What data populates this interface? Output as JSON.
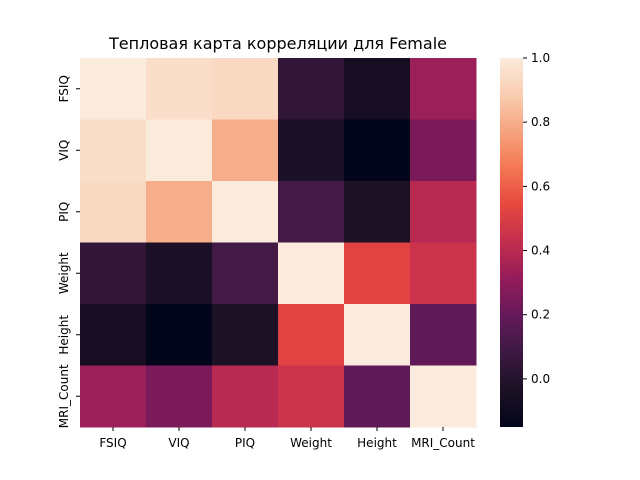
{
  "chart_data": {
    "type": "heatmap",
    "title": "Тепловая карта корреляции для Female",
    "xlabel": "",
    "ylabel": "",
    "x_categories": [
      "FSIQ",
      "VIQ",
      "PIQ",
      "Weight",
      "Height",
      "MRI_Count"
    ],
    "y_categories": [
      "FSIQ",
      "VIQ",
      "PIQ",
      "Weight",
      "Height",
      "MRI_Count"
    ],
    "values": [
      [
        1.0,
        0.95,
        0.93,
        0.04,
        -0.06,
        0.33
      ],
      [
        0.95,
        1.0,
        0.8,
        -0.04,
        -0.15,
        0.25
      ],
      [
        0.93,
        0.8,
        1.0,
        0.1,
        -0.03,
        0.4
      ],
      [
        0.04,
        -0.04,
        0.1,
        1.0,
        0.52,
        0.45
      ],
      [
        -0.06,
        -0.15,
        -0.03,
        0.52,
        1.0,
        0.18
      ],
      [
        0.33,
        0.25,
        0.4,
        0.45,
        0.18,
        1.0
      ]
    ],
    "colorbar": {
      "min": -0.15,
      "max": 1.0,
      "ticks": [
        0.0,
        0.2,
        0.4,
        0.6,
        0.8,
        1.0
      ],
      "tick_labels": [
        "0.0",
        "0.2",
        "0.4",
        "0.6",
        "0.8",
        "1.0"
      ]
    },
    "colormap": "rocket",
    "colormap_stops": [
      "#03051a",
      "#1c1125",
      "#3c1942",
      "#65195a",
      "#931c5a",
      "#c22e4e",
      "#e6473f",
      "#f37651",
      "#f6a37e",
      "#f9cdb0",
      "#faebdd"
    ],
    "grid": false,
    "legend": "colorbar-right"
  }
}
